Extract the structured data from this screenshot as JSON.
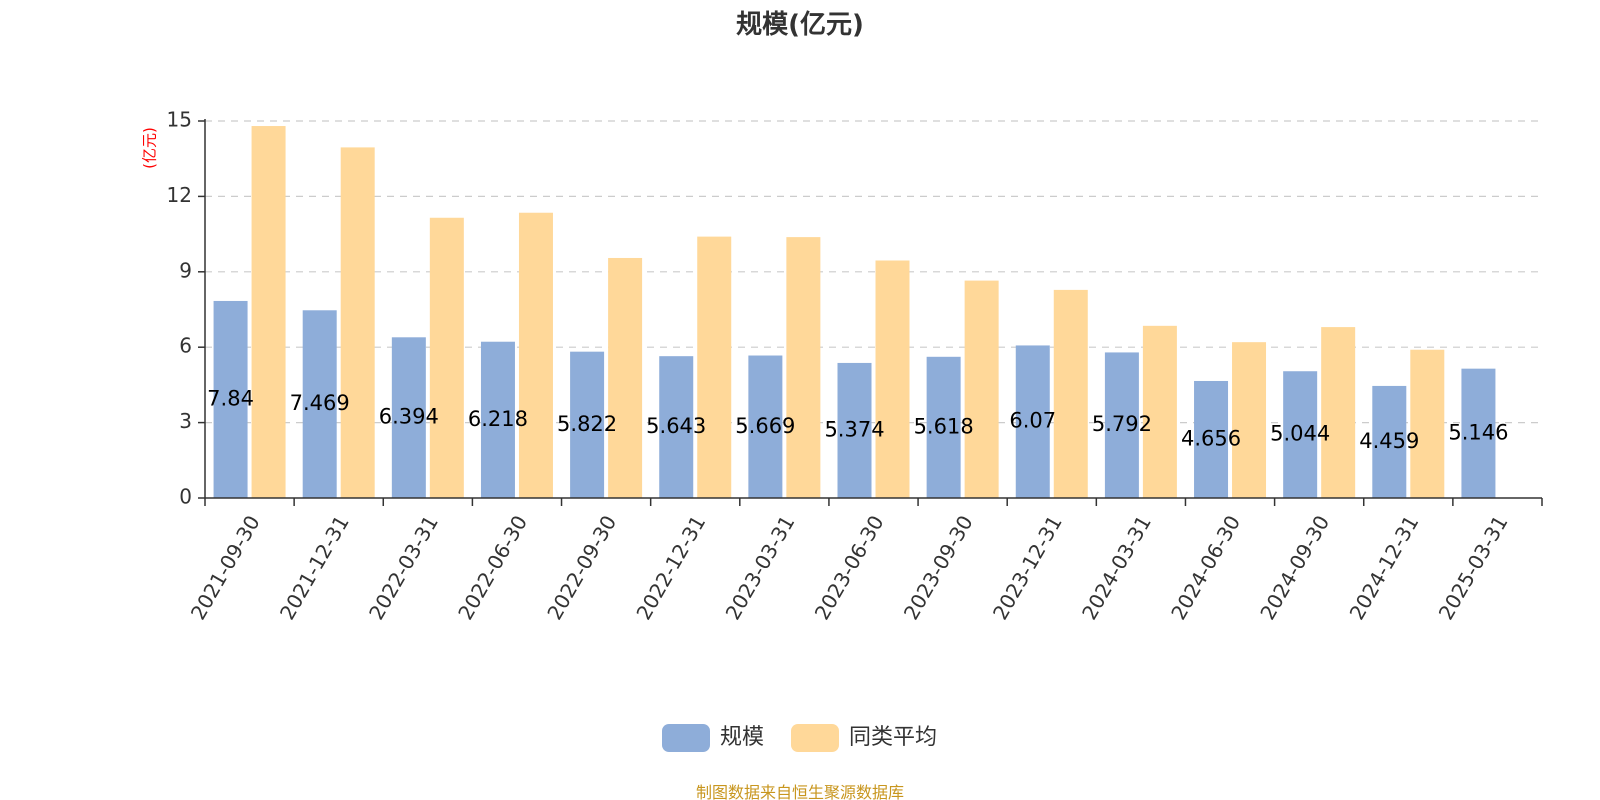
{
  "chart_data": {
    "type": "bar",
    "title": "规模(亿元)",
    "ylabel": "(亿元)",
    "ylim": [
      0,
      15
    ],
    "yticks": [
      0,
      3,
      6,
      9,
      12,
      15
    ],
    "grid": true,
    "categories": [
      "2021-09-30",
      "2021-12-31",
      "2022-03-31",
      "2022-06-30",
      "2022-09-30",
      "2022-12-31",
      "2023-03-31",
      "2023-06-30",
      "2023-09-30",
      "2023-12-31",
      "2024-03-31",
      "2024-06-30",
      "2024-09-30",
      "2024-12-31",
      "2025-03-31"
    ],
    "series": [
      {
        "name": "规模",
        "color": "#8eadd9",
        "values": [
          7.84,
          7.469,
          6.394,
          6.218,
          5.822,
          5.643,
          5.669,
          5.374,
          5.618,
          6.07,
          5.792,
          4.656,
          5.044,
          4.459,
          5.146
        ],
        "labels": [
          "7.84",
          "7.469",
          "6.394",
          "6.218",
          "5.822",
          "5.643",
          "5.669",
          "5.374",
          "5.618",
          "6.07",
          "5.792",
          "4.656",
          "5.044",
          "4.459",
          "5.146"
        ]
      },
      {
        "name": "同类平均",
        "color": "#ffd899",
        "values": [
          14.8,
          13.95,
          11.15,
          11.35,
          9.55,
          10.4,
          10.38,
          9.45,
          8.65,
          8.28,
          6.85,
          6.2,
          6.8,
          5.9,
          null
        ]
      }
    ],
    "legend_position": "bottom-center",
    "source": "制图数据来自恒生聚源数据库"
  }
}
